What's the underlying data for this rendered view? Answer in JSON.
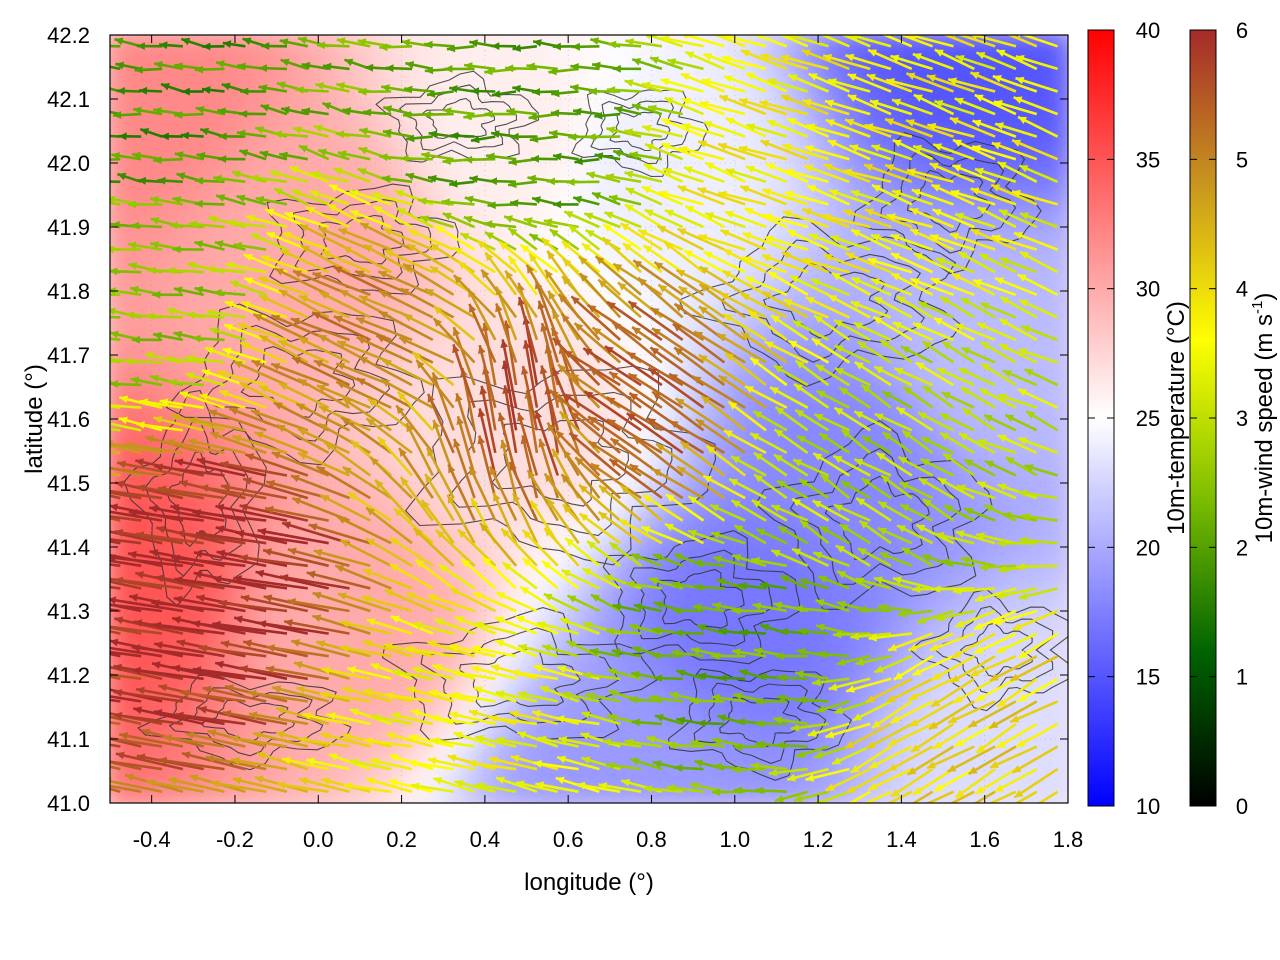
{
  "chart_data": {
    "type": "heatmap",
    "xlabel": "longitude (°)",
    "ylabel": "latitude (°)",
    "xlim": [
      -0.5,
      1.8
    ],
    "ylim": [
      41.0,
      42.2
    ],
    "xticks": [
      "-0.4",
      "-0.2",
      "0.0",
      "0.2",
      "0.4",
      "0.6",
      "0.8",
      "1.0",
      "1.2",
      "1.4",
      "1.6",
      "1.8"
    ],
    "xtick_values": [
      -0.4,
      -0.2,
      0.0,
      0.2,
      0.4,
      0.6,
      0.8,
      1.0,
      1.2,
      1.4,
      1.6,
      1.8
    ],
    "yticks": [
      "41.0",
      "41.1",
      "41.2",
      "41.3",
      "41.4",
      "41.5",
      "41.6",
      "41.7",
      "41.8",
      "41.9",
      "42.0",
      "42.1",
      "42.2"
    ],
    "ytick_values": [
      41.0,
      41.1,
      41.2,
      41.3,
      41.4,
      41.5,
      41.6,
      41.7,
      41.8,
      41.9,
      42.0,
      42.1,
      42.2
    ],
    "grid": true,
    "temperature_colorbar": {
      "label": "10m-temperature (°C)",
      "range": [
        10,
        40
      ],
      "ticks": [
        "10",
        "15",
        "20",
        "25",
        "30",
        "35",
        "40"
      ],
      "tick_values": [
        10,
        15,
        20,
        25,
        30,
        35,
        40
      ],
      "colors": [
        "#0000ff",
        "#ffffff",
        "#ff0000"
      ]
    },
    "wind_colorbar": {
      "label": "10m-wind speed (m s",
      "label_sup": "-1",
      "label_end": ")",
      "range": [
        0,
        6
      ],
      "ticks": [
        "0",
        "1",
        "2",
        "3",
        "4",
        "5",
        "6"
      ],
      "tick_values": [
        0,
        1,
        2,
        3,
        4,
        5,
        6
      ],
      "colors": [
        "#000000",
        "#006400",
        "#7fbf00",
        "#ffff00",
        "#c8961e",
        "#a52a2a"
      ]
    },
    "temperature_field_anchors": [
      {
        "lon": -0.45,
        "lat": 41.35,
        "value": 35
      },
      {
        "lon": -0.4,
        "lat": 42.1,
        "value": 32
      },
      {
        "lon": 0.0,
        "lat": 41.9,
        "value": 30
      },
      {
        "lon": 0.1,
        "lat": 41.3,
        "value": 30
      },
      {
        "lon": 0.5,
        "lat": 41.6,
        "value": 27
      },
      {
        "lon": 0.5,
        "lat": 42.05,
        "value": 26
      },
      {
        "lon": 0.8,
        "lat": 42.0,
        "value": 24
      },
      {
        "lon": 0.75,
        "lat": 41.05,
        "value": 19
      },
      {
        "lon": 1.05,
        "lat": 41.3,
        "value": 17
      },
      {
        "lon": 1.3,
        "lat": 41.55,
        "value": 18
      },
      {
        "lon": 1.6,
        "lat": 42.2,
        "value": 15
      },
      {
        "lon": 1.6,
        "lat": 41.7,
        "value": 21
      },
      {
        "lon": 1.7,
        "lat": 41.1,
        "value": 23
      }
    ],
    "wind_field_anchors": [
      {
        "lon": -0.4,
        "lat": 42.1,
        "u": -1.8,
        "v": 0.2
      },
      {
        "lon": -0.4,
        "lat": 41.8,
        "u": -2.5,
        "v": 0.3
      },
      {
        "lon": -0.2,
        "lat": 41.35,
        "u": -6.0,
        "v": 1.0
      },
      {
        "lon": 0.2,
        "lat": 41.7,
        "u": -4.5,
        "v": 2.0
      },
      {
        "lon": 0.5,
        "lat": 41.6,
        "u": -1.0,
        "v": 5.5
      },
      {
        "lon": 0.8,
        "lat": 41.6,
        "u": -4.5,
        "v": 3.0
      },
      {
        "lon": 0.5,
        "lat": 42.05,
        "u": -2.0,
        "v": 0.0
      },
      {
        "lon": 1.2,
        "lat": 42.0,
        "u": -3.5,
        "v": 1.2
      },
      {
        "lon": 1.3,
        "lat": 41.5,
        "u": -2.5,
        "v": 1.5
      },
      {
        "lon": 1.0,
        "lat": 41.25,
        "u": -2.2,
        "v": 0.3
      },
      {
        "lon": 1.6,
        "lat": 41.1,
        "u": -3.5,
        "v": -2.0
      },
      {
        "lon": 0.4,
        "lat": 41.1,
        "u": -3.5,
        "v": 0.8
      }
    ]
  }
}
